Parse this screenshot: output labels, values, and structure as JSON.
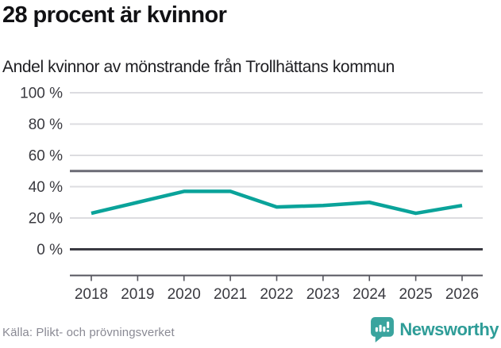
{
  "header": {
    "title": "28 procent är kvinnor",
    "subtitle": "Andel kvinnor av mönstrande från Trollhättans kommun"
  },
  "chart_data": {
    "type": "line",
    "title": "28 procent är kvinnor",
    "subtitle": "Andel kvinnor av mönstrande från Trollhättans kommun",
    "x": [
      "2018",
      "2019",
      "2020",
      "2021",
      "2022",
      "2023",
      "2024",
      "2025",
      "2026"
    ],
    "series": [
      {
        "name": "Andel kvinnor av mönstrande",
        "values": [
          23,
          30,
          37,
          37,
          27,
          28,
          30,
          23,
          28
        ]
      }
    ],
    "unit": "%",
    "ylim": [
      0,
      100
    ],
    "yticks": [
      0,
      20,
      40,
      60,
      80,
      100
    ],
    "ytick_suffix": " %",
    "reference_line_y": 50,
    "grid": true,
    "legend": false,
    "line_color": "#0aa39a",
    "source": "Källa: Plikt- och prövningsverket"
  },
  "footer": {
    "logo_text": "Newsworthy"
  },
  "colors": {
    "accent": "#0aa39a",
    "brand_teal": "#3aa49e",
    "brand_word": "#2f9d98",
    "grid_light": "#dcdce0",
    "grid_mid": "#6b6b75",
    "grid_zero": "#3a3a42",
    "axis": "#55555e",
    "text_tick": "#3a3a40",
    "text_dark": "#111114",
    "text_muted": "#8a8a94"
  }
}
